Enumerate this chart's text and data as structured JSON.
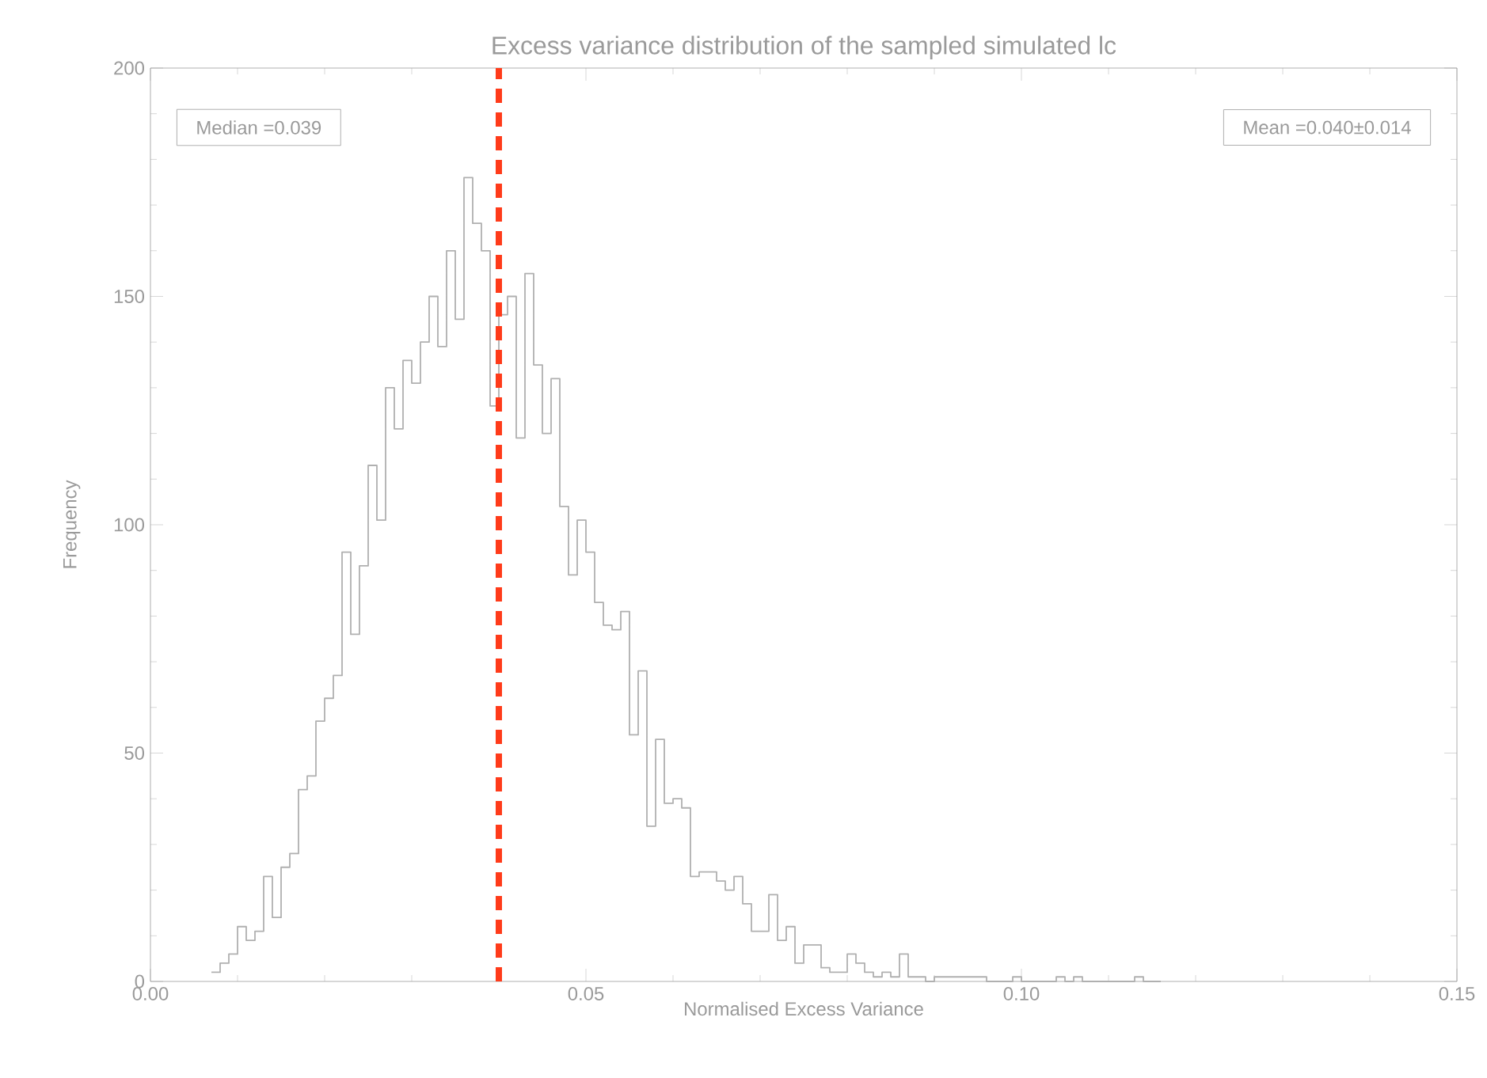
{
  "chart_data": {
    "type": "histogram",
    "title": "Excess variance distribution of the sampled simulated lc",
    "xlabel": "Normalised Excess Variance",
    "ylabel": "Frequency",
    "bins": [
      0.007,
      0.008,
      0.009,
      0.01,
      0.011,
      0.012,
      0.013,
      0.014,
      0.015,
      0.016,
      0.017,
      0.018,
      0.019,
      0.02,
      0.021,
      0.022,
      0.023,
      0.024,
      0.025,
      0.026,
      0.027,
      0.028,
      0.029,
      0.03,
      0.031,
      0.032,
      0.033,
      0.034,
      0.035,
      0.036,
      0.037,
      0.038,
      0.039,
      0.04,
      0.041,
      0.042,
      0.043,
      0.044,
      0.045,
      0.046,
      0.047,
      0.048,
      0.049,
      0.05,
      0.051,
      0.052,
      0.053,
      0.054,
      0.055,
      0.056,
      0.057,
      0.058,
      0.059,
      0.06,
      0.061,
      0.062,
      0.063,
      0.064,
      0.065,
      0.066,
      0.067,
      0.068,
      0.069,
      0.07,
      0.071,
      0.072,
      0.073,
      0.074,
      0.075,
      0.076,
      0.077,
      0.078,
      0.079,
      0.08,
      0.081,
      0.082,
      0.083,
      0.084,
      0.085,
      0.086,
      0.087,
      0.088,
      0.089,
      0.09,
      0.091,
      0.092,
      0.093,
      0.094,
      0.095,
      0.096,
      0.097,
      0.098,
      0.099,
      0.1,
      0.101,
      0.102,
      0.103,
      0.104,
      0.105,
      0.106,
      0.107,
      0.108,
      0.109,
      0.11,
      0.111,
      0.112,
      0.113,
      0.114,
      0.115,
      0.116
    ],
    "values": [
      2,
      4,
      6,
      12,
      9,
      11,
      23,
      14,
      25,
      28,
      42,
      45,
      57,
      62,
      67,
      94,
      76,
      91,
      113,
      101,
      130,
      121,
      136,
      131,
      140,
      150,
      139,
      160,
      145,
      176,
      166,
      160,
      126,
      146,
      150,
      119,
      155,
      135,
      120,
      132,
      104,
      89,
      101,
      94,
      83,
      78,
      77,
      81,
      54,
      68,
      34,
      53,
      39,
      40,
      38,
      23,
      24,
      24,
      22,
      20,
      23,
      17,
      11,
      11,
      19,
      9,
      12,
      4,
      8,
      8,
      3,
      2,
      2,
      6,
      4,
      2,
      1,
      2,
      1,
      6,
      1,
      1,
      0,
      1,
      1,
      1,
      1,
      1,
      1,
      0,
      0,
      0,
      1,
      0,
      0,
      0,
      0,
      1,
      0,
      1,
      0,
      0,
      0,
      0,
      0,
      0,
      1,
      0,
      0
    ],
    "color": "#b0b0b0",
    "xlim": [
      0,
      0.15
    ],
    "ylim": [
      0,
      200
    ],
    "xticks": [
      {
        "value": 0,
        "label": "0.00"
      },
      {
        "value": 0.05,
        "label": "0.05"
      },
      {
        "value": 0.1,
        "label": "0.10"
      },
      {
        "value": 0.15,
        "label": "0.15"
      }
    ],
    "yticks": [
      0,
      50,
      100,
      150,
      200
    ],
    "ref_lines": [
      {
        "axis": "x",
        "value": 0.04,
        "color": "#ff3b1a",
        "line_style": "dashed"
      }
    ],
    "annotations": [
      "Median =0.039",
      "Mean =0.040±0.014"
    ]
  }
}
